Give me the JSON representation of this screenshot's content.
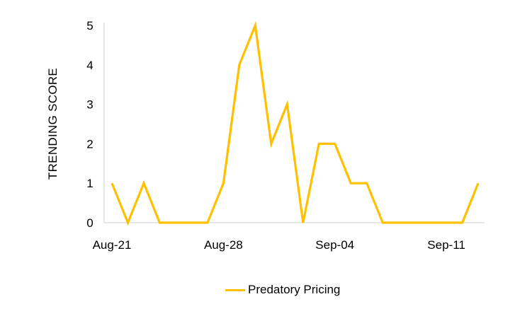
{
  "colors": {
    "series": "#FFC000",
    "axis": "#d0d0d0"
  },
  "chart_data": {
    "type": "line",
    "title": "",
    "xlabel": "",
    "ylabel": "TRENDING SCORE",
    "x": [
      "Aug-21",
      "Aug-22",
      "Aug-23",
      "Aug-24",
      "Aug-25",
      "Aug-26",
      "Aug-27",
      "Aug-28",
      "Aug-29",
      "Aug-30",
      "Aug-31",
      "Sep-01",
      "Sep-02",
      "Sep-03",
      "Sep-04",
      "Sep-05",
      "Sep-06",
      "Sep-07",
      "Sep-08",
      "Sep-09",
      "Sep-10",
      "Sep-11",
      "Sep-12",
      "Sep-13"
    ],
    "x_tick_labels": [
      "Aug-21",
      "Aug-28",
      "Sep-04",
      "Sep-11"
    ],
    "y_tick_labels": [
      "0",
      "1",
      "2",
      "3",
      "4",
      "5"
    ],
    "ylim": [
      0,
      5
    ],
    "grid": false,
    "legend_position": "bottom",
    "series": [
      {
        "name": "Predatory Pricing",
        "values": [
          1,
          0,
          1,
          0,
          0,
          0,
          0,
          1,
          4,
          5,
          2,
          3,
          0,
          2,
          2,
          1,
          1,
          0,
          0,
          0,
          0,
          0,
          0,
          1
        ]
      }
    ]
  }
}
